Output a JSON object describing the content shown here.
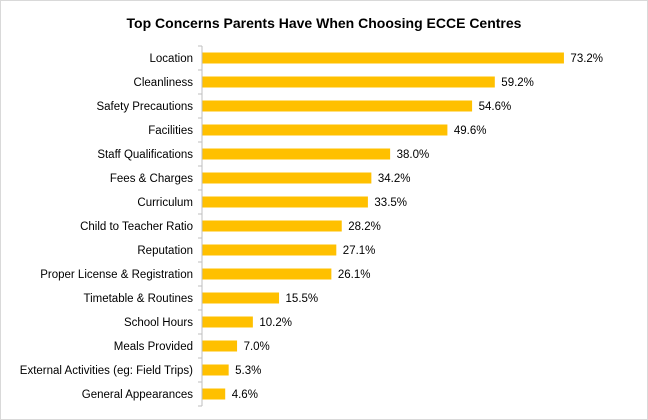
{
  "chart_data": {
    "type": "bar",
    "orientation": "horizontal",
    "title": "Top Concerns Parents Have When Choosing ECCE Centres",
    "xlabel": "",
    "ylabel": "",
    "categories": [
      "Location",
      "Cleanliness",
      "Safety Precautions",
      "Facilities",
      "Staff Qualifications",
      "Fees & Charges",
      "Curriculum",
      "Child to Teacher Ratio",
      "Reputation",
      "Proper License & Registration",
      "Timetable & Routines",
      "School Hours",
      "Meals Provided",
      "External Activities (eg: Field Trips)",
      "General Appearances"
    ],
    "values": [
      73.2,
      59.2,
      54.6,
      49.6,
      38.0,
      34.2,
      33.5,
      28.2,
      27.1,
      26.1,
      15.5,
      10.2,
      7.0,
      5.3,
      4.6
    ],
    "value_labels": [
      "73.2%",
      "59.2%",
      "54.6%",
      "49.6%",
      "38.0%",
      "34.2%",
      "33.5%",
      "28.2%",
      "27.1%",
      "26.1%",
      "15.5%",
      "10.2%",
      "7.0%",
      "5.3%",
      "4.6%"
    ],
    "xlim": [
      0,
      80
    ],
    "bar_color": "#FFC000",
    "axis_color": "#bfbfbf",
    "grid": false,
    "legend": "none"
  }
}
